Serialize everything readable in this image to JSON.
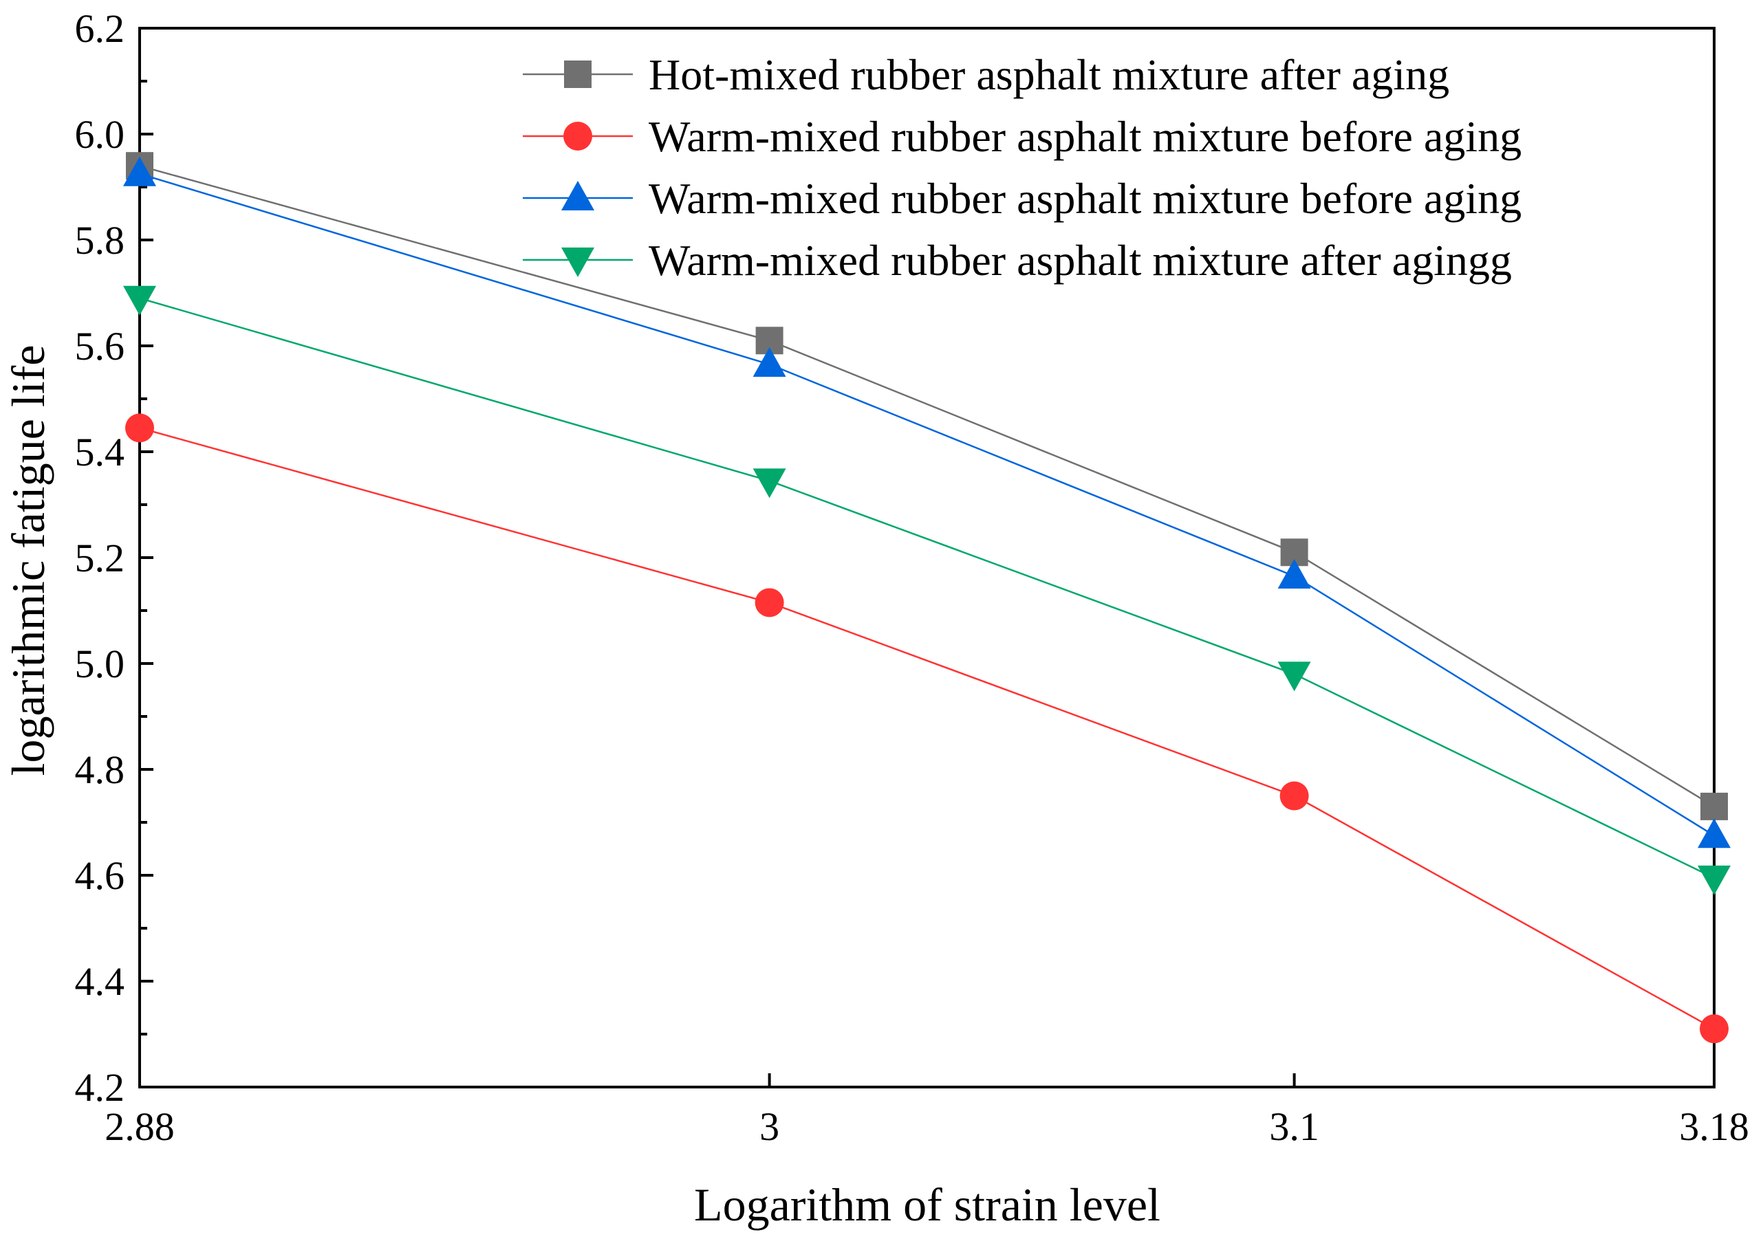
{
  "chart_data": {
    "type": "line",
    "title": "",
    "xlabel": "Logarithm of strain level",
    "ylabel": "logarithmic fatigue life",
    "x_tick_labels": [
      "2.88",
      "3",
      "3.1",
      "3.18"
    ],
    "categories": [
      "2.88",
      "3",
      "3.1",
      "3.18"
    ],
    "x_positions": [
      2.88,
      3.0,
      3.1,
      3.18
    ],
    "ylim": [
      4.2,
      6.2
    ],
    "y_ticks": [
      "4.2",
      "4.4",
      "4.6",
      "4.8",
      "5.0",
      "5.2",
      "5.4",
      "5.6",
      "5.8",
      "6.0",
      "6.2"
    ],
    "y_tick_values": [
      4.2,
      4.4,
      4.6,
      4.8,
      5.0,
      5.2,
      5.4,
      5.6,
      5.8,
      6.0,
      6.2
    ],
    "legend_position": "top-right",
    "series": [
      {
        "name": "Hot-mixed rubber asphalt mixture after aging",
        "color": "#707070",
        "marker": "square",
        "values": [
          5.94,
          5.61,
          5.21,
          4.73
        ]
      },
      {
        "name": "Warm-mixed rubber asphalt mixture before aging",
        "color": "#ff3333",
        "marker": "circle",
        "values": [
          5.445,
          5.115,
          4.75,
          4.31
        ]
      },
      {
        "name": "Warm-mixed rubber asphalt mixture before aging",
        "color": "#0066dd",
        "marker": "triangle-up",
        "values": [
          5.925,
          5.565,
          5.165,
          4.675
        ]
      },
      {
        "name": "Warm-mixed rubber asphalt mixture after agingg",
        "color": "#00a86b",
        "marker": "triangle-down",
        "values": [
          5.69,
          5.345,
          4.98,
          4.595
        ]
      }
    ]
  }
}
